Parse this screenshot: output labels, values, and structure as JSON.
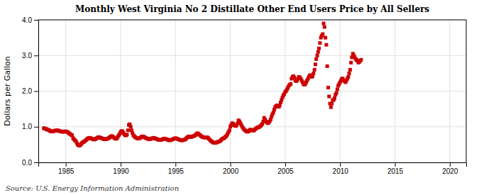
{
  "chart_data": {
    "type": "scatter",
    "title": "Monthly West Virginia No 2 Distillate Other End Users Price by All Sellers",
    "ylabel": "Dollars per Gallon",
    "source": "Source: U.S. Energy Information Administration",
    "color": "#cc0000",
    "marker": "square",
    "grid": true,
    "xlim": [
      1982.5,
      2021.5
    ],
    "ylim": [
      0.0,
      4.0
    ],
    "xticks": [
      1985,
      1990,
      1995,
      2000,
      2005,
      2010,
      2015,
      2020
    ],
    "yticks": [
      {
        "value": 0.0,
        "label": "0.0"
      },
      {
        "value": 1.0,
        "label": "1.0"
      },
      {
        "value": 2.0,
        "label": "2.0"
      },
      {
        "value": 3.0,
        "label": "3.0"
      },
      {
        "value": 4.0,
        "label": "4.0"
      }
    ],
    "x": [
      1983.0,
      1983.08,
      1983.17,
      1983.25,
      1983.33,
      1983.42,
      1983.5,
      1983.58,
      1983.67,
      1983.75,
      1983.83,
      1983.92,
      1984.0,
      1984.08,
      1984.17,
      1984.25,
      1984.33,
      1984.42,
      1984.5,
      1984.58,
      1984.67,
      1984.75,
      1984.83,
      1984.92,
      1985.0,
      1985.08,
      1985.17,
      1985.25,
      1985.33,
      1985.42,
      1985.5,
      1985.58,
      1985.67,
      1985.75,
      1985.83,
      1985.92,
      1986.0,
      1986.08,
      1986.17,
      1986.25,
      1986.33,
      1986.42,
      1986.5,
      1986.58,
      1986.67,
      1986.75,
      1986.83,
      1986.92,
      1987.0,
      1987.08,
      1987.17,
      1987.25,
      1987.33,
      1987.42,
      1987.5,
      1987.58,
      1987.67,
      1987.75,
      1987.83,
      1987.92,
      1988.0,
      1988.08,
      1988.17,
      1988.25,
      1988.33,
      1988.42,
      1988.5,
      1988.58,
      1988.67,
      1988.75,
      1988.83,
      1988.92,
      1989.0,
      1989.08,
      1989.17,
      1989.25,
      1989.33,
      1989.42,
      1989.5,
      1989.58,
      1989.67,
      1989.75,
      1989.83,
      1989.92,
      1990.0,
      1990.08,
      1990.17,
      1990.25,
      1990.33,
      1990.42,
      1990.5,
      1990.58,
      1990.67,
      1990.75,
      1990.83,
      1990.92,
      1991.0,
      1991.08,
      1991.17,
      1991.25,
      1991.33,
      1991.42,
      1991.5,
      1991.58,
      1991.67,
      1991.75,
      1991.83,
      1991.92,
      1992.0,
      1992.08,
      1992.17,
      1992.25,
      1992.33,
      1992.42,
      1992.5,
      1992.58,
      1992.67,
      1992.75,
      1992.83,
      1992.92,
      1993.0,
      1993.08,
      1993.17,
      1993.25,
      1993.33,
      1993.42,
      1993.5,
      1993.58,
      1993.67,
      1993.75,
      1993.83,
      1993.92,
      1994.0,
      1994.08,
      1994.17,
      1994.25,
      1994.33,
      1994.42,
      1994.5,
      1994.58,
      1994.67,
      1994.75,
      1994.83,
      1994.92,
      1995.0,
      1995.08,
      1995.17,
      1995.25,
      1995.33,
      1995.42,
      1995.5,
      1995.58,
      1995.67,
      1995.75,
      1995.83,
      1995.92,
      1996.0,
      1996.08,
      1996.17,
      1996.25,
      1996.33,
      1996.42,
      1996.5,
      1996.58,
      1996.67,
      1996.75,
      1996.83,
      1996.92,
      1997.0,
      1997.08,
      1997.17,
      1997.25,
      1997.33,
      1997.42,
      1997.5,
      1997.58,
      1997.67,
      1997.75,
      1997.83,
      1997.92,
      1998.0,
      1998.08,
      1998.17,
      1998.25,
      1998.33,
      1998.42,
      1998.5,
      1998.58,
      1998.67,
      1998.75,
      1998.83,
      1998.92,
      1999.0,
      1999.08,
      1999.17,
      1999.25,
      1999.33,
      1999.42,
      1999.5,
      1999.58,
      1999.67,
      1999.75,
      1999.83,
      1999.92,
      2000.0,
      2000.08,
      2000.17,
      2000.25,
      2000.33,
      2000.42,
      2000.5,
      2000.58,
      2000.67,
      2000.75,
      2000.83,
      2000.92,
      2001.0,
      2001.08,
      2001.17,
      2001.25,
      2001.33,
      2001.42,
      2001.5,
      2001.58,
      2001.67,
      2001.75,
      2001.83,
      2001.92,
      2002.0,
      2002.08,
      2002.17,
      2002.25,
      2002.33,
      2002.42,
      2002.5,
      2002.58,
      2002.67,
      2002.75,
      2002.83,
      2002.92,
      2003.0,
      2003.08,
      2003.17,
      2003.25,
      2003.33,
      2003.42,
      2003.5,
      2003.58,
      2003.67,
      2003.75,
      2003.83,
      2003.92,
      2004.0,
      2004.08,
      2004.17,
      2004.25,
      2004.33,
      2004.42,
      2004.5,
      2004.58,
      2004.67,
      2004.75,
      2004.83,
      2004.92,
      2005.0,
      2005.08,
      2005.17,
      2005.25,
      2005.33,
      2005.42,
      2005.5,
      2005.58,
      2005.67,
      2005.75,
      2005.83,
      2005.92,
      2006.0,
      2006.08,
      2006.17,
      2006.25,
      2006.33,
      2006.42,
      2006.5,
      2006.58,
      2006.67,
      2006.75,
      2006.83,
      2006.92,
      2007.0,
      2007.08,
      2007.17,
      2007.25,
      2007.33,
      2007.42,
      2007.5,
      2007.58,
      2007.67,
      2007.75,
      2007.83,
      2007.92,
      2008.0,
      2008.08,
      2008.17,
      2008.25,
      2008.33,
      2008.42,
      2008.5,
      2008.58,
      2008.67,
      2008.75,
      2008.83,
      2008.92,
      2009.0,
      2009.08,
      2009.17,
      2009.25,
      2009.33,
      2009.42,
      2009.5,
      2009.58,
      2009.67,
      2009.75,
      2009.83,
      2009.92,
      2010.0,
      2010.08,
      2010.17,
      2010.25,
      2010.33,
      2010.42,
      2010.5,
      2010.58,
      2010.67,
      2010.75,
      2010.83,
      2010.92,
      2011.0,
      2011.08,
      2011.17,
      2011.25,
      2011.33,
      2011.42,
      2011.5,
      2011.58,
      2011.67,
      2011.75,
      2011.83,
      2011.92
    ],
    "values": [
      0.96,
      0.95,
      0.94,
      0.93,
      0.92,
      0.91,
      0.9,
      0.88,
      0.87,
      0.87,
      0.87,
      0.88,
      0.89,
      0.89,
      0.9,
      0.9,
      0.89,
      0.88,
      0.87,
      0.87,
      0.86,
      0.86,
      0.86,
      0.87,
      0.87,
      0.86,
      0.85,
      0.83,
      0.81,
      0.79,
      0.77,
      0.76,
      0.68,
      0.65,
      0.62,
      0.6,
      0.55,
      0.5,
      0.48,
      0.47,
      0.49,
      0.52,
      0.55,
      0.57,
      0.58,
      0.6,
      0.62,
      0.65,
      0.67,
      0.68,
      0.69,
      0.68,
      0.67,
      0.66,
      0.65,
      0.64,
      0.65,
      0.66,
      0.68,
      0.7,
      0.71,
      0.7,
      0.69,
      0.68,
      0.67,
      0.66,
      0.65,
      0.65,
      0.65,
      0.66,
      0.67,
      0.68,
      0.7,
      0.72,
      0.74,
      0.73,
      0.71,
      0.69,
      0.67,
      0.66,
      0.68,
      0.72,
      0.76,
      0.8,
      0.85,
      0.88,
      0.87,
      0.83,
      0.79,
      0.76,
      0.76,
      0.78,
      0.9,
      1.05,
      1.07,
      1.0,
      0.9,
      0.82,
      0.76,
      0.73,
      0.71,
      0.69,
      0.68,
      0.67,
      0.67,
      0.68,
      0.7,
      0.72,
      0.73,
      0.72,
      0.71,
      0.69,
      0.68,
      0.67,
      0.66,
      0.65,
      0.65,
      0.66,
      0.67,
      0.68,
      0.69,
      0.68,
      0.67,
      0.66,
      0.65,
      0.64,
      0.63,
      0.63,
      0.63,
      0.64,
      0.65,
      0.66,
      0.67,
      0.66,
      0.65,
      0.64,
      0.63,
      0.62,
      0.62,
      0.63,
      0.64,
      0.65,
      0.66,
      0.67,
      0.68,
      0.67,
      0.66,
      0.65,
      0.64,
      0.63,
      0.62,
      0.62,
      0.62,
      0.63,
      0.64,
      0.65,
      0.68,
      0.7,
      0.72,
      0.73,
      0.72,
      0.71,
      0.72,
      0.73,
      0.74,
      0.75,
      0.77,
      0.8,
      0.82,
      0.8,
      0.78,
      0.76,
      0.74,
      0.72,
      0.71,
      0.7,
      0.7,
      0.7,
      0.7,
      0.7,
      0.68,
      0.65,
      0.62,
      0.6,
      0.58,
      0.56,
      0.55,
      0.55,
      0.55,
      0.56,
      0.57,
      0.58,
      0.59,
      0.6,
      0.63,
      0.66,
      0.67,
      0.68,
      0.7,
      0.73,
      0.75,
      0.8,
      0.85,
      0.9,
      1.0,
      1.05,
      1.1,
      1.08,
      1.05,
      1.03,
      1.02,
      1.05,
      1.1,
      1.18,
      1.15,
      1.1,
      1.05,
      1.0,
      0.96,
      0.93,
      0.9,
      0.88,
      0.87,
      0.86,
      0.87,
      0.9,
      0.92,
      0.91,
      0.9,
      0.89,
      0.9,
      0.93,
      0.95,
      0.97,
      0.98,
      0.99,
      1.0,
      1.02,
      1.05,
      1.08,
      1.15,
      1.25,
      1.2,
      1.15,
      1.12,
      1.1,
      1.12,
      1.15,
      1.2,
      1.28,
      1.35,
      1.4,
      1.48,
      1.55,
      1.58,
      1.6,
      1.58,
      1.56,
      1.6,
      1.68,
      1.75,
      1.82,
      1.88,
      1.92,
      1.98,
      2.0,
      2.05,
      2.1,
      2.15,
      2.18,
      2.2,
      2.35,
      2.4,
      2.42,
      2.38,
      2.3,
      2.28,
      2.3,
      2.35,
      2.4,
      2.38,
      2.35,
      2.3,
      2.25,
      2.2,
      2.18,
      2.2,
      2.25,
      2.3,
      2.35,
      2.4,
      2.45,
      2.42,
      2.4,
      2.42,
      2.5,
      2.6,
      2.75,
      2.9,
      3.0,
      3.1,
      3.2,
      3.35,
      3.5,
      3.55,
      3.6,
      3.9,
      3.8,
      3.5,
      3.3,
      2.7,
      2.1,
      1.85,
      1.65,
      1.55,
      1.65,
      1.75,
      1.75,
      1.8,
      1.9,
      1.95,
      2.05,
      2.15,
      2.2,
      2.25,
      2.3,
      2.35,
      2.35,
      2.3,
      2.28,
      2.25,
      2.3,
      2.35,
      2.4,
      2.5,
      2.6,
      2.8,
      2.95,
      3.05,
      3.0,
      2.95,
      2.9,
      2.88,
      2.85,
      2.8,
      2.82,
      2.85,
      2.88
    ]
  }
}
